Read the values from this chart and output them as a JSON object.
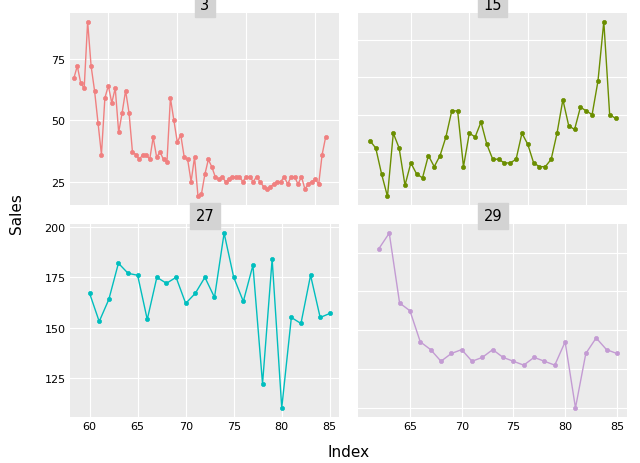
{
  "panel3": {
    "title": "3",
    "color": "#F08080",
    "x": [
      10,
      11,
      12,
      13,
      14,
      15,
      16,
      17,
      18,
      19,
      20,
      21,
      22,
      23,
      24,
      25,
      26,
      27,
      28,
      29,
      30,
      31,
      32,
      33,
      34,
      35,
      36,
      37,
      38,
      39,
      40,
      41,
      42,
      43,
      44,
      45,
      46,
      47,
      48,
      49,
      50,
      51,
      52,
      53,
      54,
      55,
      56,
      57,
      58,
      59,
      60,
      61,
      62,
      63,
      64,
      65,
      66,
      67,
      68,
      69,
      70,
      71,
      72,
      73,
      74,
      75,
      76,
      77,
      78,
      79,
      80,
      81,
      82,
      83
    ],
    "y": [
      67,
      72,
      65,
      63,
      90,
      72,
      62,
      49,
      36,
      59,
      64,
      57,
      63,
      45,
      53,
      62,
      53,
      37,
      36,
      34,
      36,
      36,
      34,
      43,
      35,
      37,
      34,
      33,
      59,
      50,
      41,
      44,
      35,
      34,
      25,
      35,
      19,
      20,
      28,
      34,
      31,
      27,
      26,
      27,
      25,
      26,
      27,
      27,
      27,
      25,
      27,
      27,
      25,
      27,
      25,
      23,
      22,
      23,
      24,
      25,
      25,
      27,
      24,
      27,
      27,
      24,
      27,
      22,
      24,
      25,
      26,
      24,
      36,
      43
    ],
    "xlim": [
      9,
      87
    ],
    "xticks": [
      20,
      40,
      60,
      80
    ],
    "yticks": [
      25,
      50,
      75
    ],
    "hide_x": true,
    "hide_y": false
  },
  "panel15": {
    "title": "15",
    "color": "#6B8E00",
    "x": [
      43,
      44,
      45,
      46,
      47,
      48,
      49,
      50,
      51,
      52,
      53,
      54,
      55,
      56,
      57,
      58,
      59,
      60,
      61,
      62,
      63,
      64,
      65,
      66,
      67,
      68,
      69,
      70,
      71,
      72,
      73,
      74,
      75,
      76,
      77,
      78,
      79,
      80,
      81,
      82,
      83,
      84,
      85
    ],
    "y": [
      23,
      21,
      14,
      8,
      25,
      21,
      11,
      17,
      14,
      13,
      19,
      16,
      19,
      24,
      31,
      31,
      16,
      25,
      24,
      28,
      22,
      18,
      18,
      17,
      17,
      18,
      25,
      22,
      17,
      16,
      16,
      18,
      25,
      34,
      27,
      26,
      32,
      31,
      30,
      39,
      55,
      30,
      29
    ],
    "xlim": [
      41,
      87
    ],
    "xticks": [
      50,
      60,
      70,
      80
    ],
    "yticks": [
      10,
      20,
      30,
      40,
      50
    ],
    "hide_x": true,
    "hide_y": true
  },
  "panel27": {
    "title": "27",
    "color": "#00BEBE",
    "x": [
      60,
      61,
      62,
      63,
      64,
      65,
      66,
      67,
      68,
      69,
      70,
      71,
      72,
      73,
      74,
      75,
      76,
      77,
      78,
      79,
      80,
      81,
      82,
      83,
      84,
      85
    ],
    "y": [
      167,
      153,
      164,
      182,
      177,
      176,
      154,
      175,
      172,
      175,
      162,
      167,
      175,
      165,
      197,
      175,
      163,
      181,
      122,
      184,
      110,
      155,
      152,
      176,
      155,
      157
    ],
    "xlim": [
      58,
      86
    ],
    "xticks": [
      60,
      65,
      70,
      75,
      80,
      85
    ],
    "yticks": [
      125,
      150,
      175,
      200
    ],
    "hide_x": false,
    "hide_y": false
  },
  "panel29": {
    "title": "29",
    "color": "#C39BD3",
    "x": [
      62,
      63,
      64,
      65,
      66,
      67,
      68,
      69,
      70,
      71,
      72,
      73,
      74,
      75,
      76,
      77,
      78,
      79,
      80,
      81,
      82,
      83,
      84,
      85
    ],
    "y": [
      51,
      55,
      37,
      35,
      27,
      25,
      22,
      24,
      25,
      22,
      23,
      25,
      23,
      22,
      21,
      23,
      22,
      21,
      27,
      10,
      24,
      28,
      25,
      24
    ],
    "xlim": [
      60,
      86
    ],
    "xticks": [
      65,
      70,
      75,
      80,
      85
    ],
    "yticks": [
      10,
      20,
      30,
      40,
      50
    ],
    "hide_x": false,
    "hide_y": true
  },
  "ylabel": "Sales",
  "xlabel": "Index",
  "bg_color": "#EBEBEB",
  "outer_bg": "#FFFFFF",
  "grid_color": "#FFFFFF",
  "title_strip_color": "#D3D3D3"
}
